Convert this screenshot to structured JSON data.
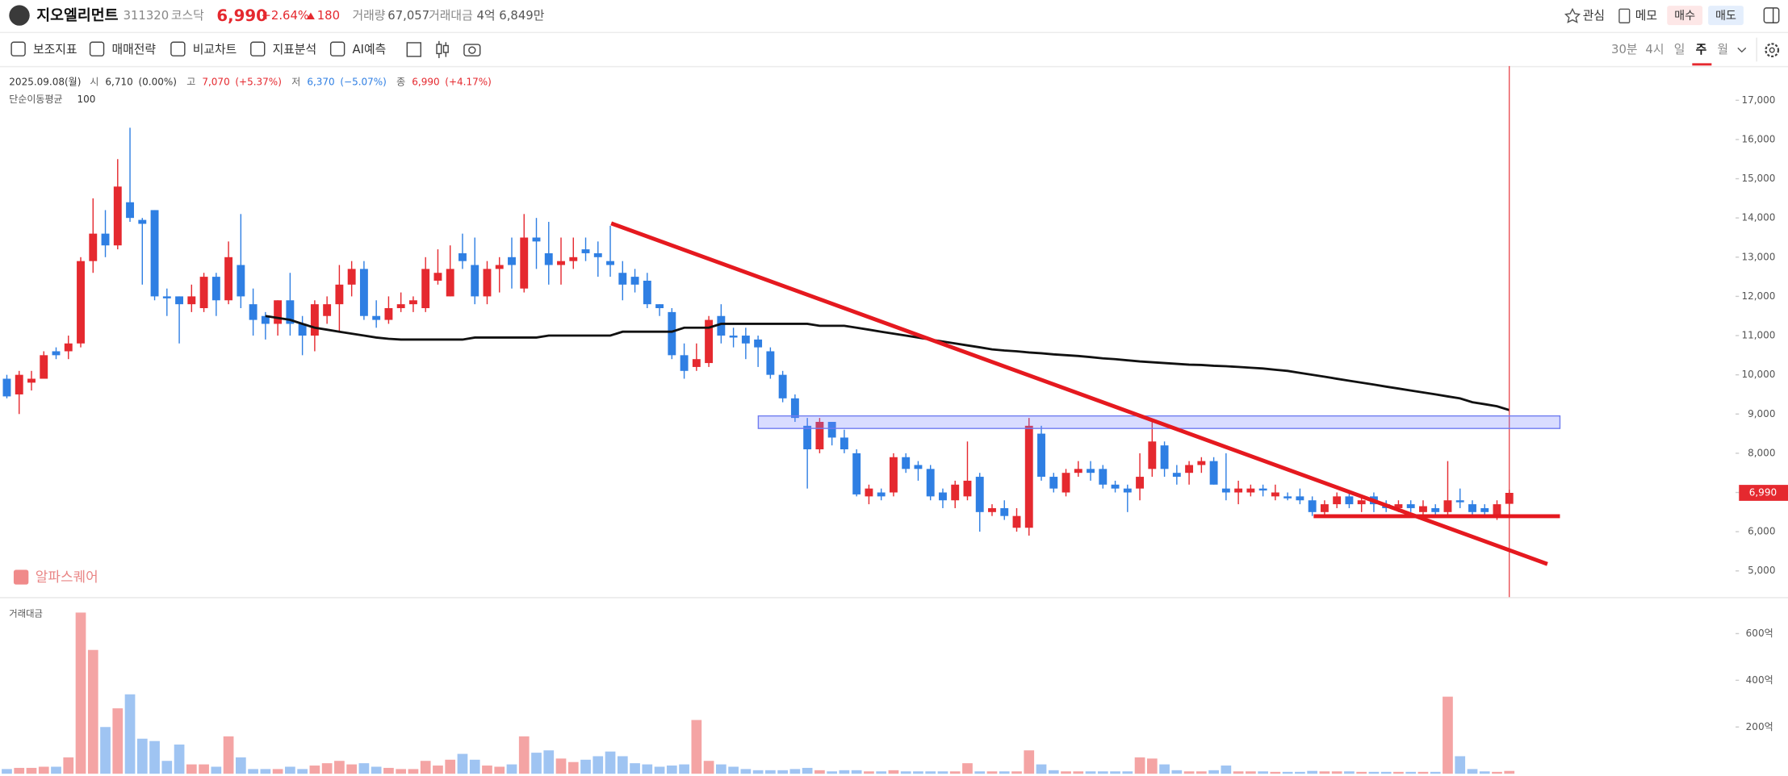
{
  "header": {
    "name": "지오엘리먼트",
    "code": "311320",
    "market": "코스닥",
    "price": "6,990",
    "change_pct": "+2.64%",
    "change": "180",
    "volume_label": "거래량",
    "volume": "67,057",
    "amount_label": "거래대금",
    "amount": "4억 6,849만",
    "actions": [
      "관심",
      "메모"
    ],
    "buy": "매수",
    "sell": "매도"
  },
  "toolbar": {
    "tools": [
      "보조지표",
      "매매전략",
      "비교차트",
      "지표분석",
      "AI예측"
    ],
    "periods": [
      "30분",
      "4시",
      "일",
      "주",
      "월"
    ],
    "selected_period": 3
  },
  "info": {
    "date": "2025.09.08(월)",
    "items": [
      {
        "label": "시",
        "value": "6,710",
        "change": "(0.00%)"
      },
      {
        "label": "고",
        "value": "7,070",
        "change": "(+5.37%)"
      },
      {
        "label": "저",
        "value": "6,370",
        "change": "(−5.07%)"
      },
      {
        "label": "종",
        "value": "6,990",
        "change": "(+4.17%)"
      }
    ]
  },
  "watermark": "알파스퀘어",
  "chart_data": [
    {
      "type": "candlestick",
      "up_color": "#e5292f",
      "down_color": "#2f7fe3",
      "ylim": [
        4332,
        17872
      ],
      "yticks": [
        {
          "value": 5000,
          "label": "5,000"
        },
        {
          "value": 6000,
          "label": "6,000"
        },
        {
          "value": 7000,
          "label": "7,000"
        },
        {
          "value": 8000,
          "label": "8,000"
        },
        {
          "value": 9000,
          "label": "9,000"
        },
        {
          "value": 10000,
          "label": "10,000"
        },
        {
          "value": 11000,
          "label": "11,000"
        },
        {
          "value": 12000,
          "label": "12,000"
        },
        {
          "value": 13000,
          "label": "13,000"
        },
        {
          "value": 14000,
          "label": "14,000"
        },
        {
          "value": 15000,
          "label": "15,000"
        },
        {
          "value": 16000,
          "label": "16,000"
        },
        {
          "value": 17000,
          "label": "17,000"
        }
      ],
      "open": [
        9900,
        9500,
        9800,
        9900,
        10600,
        10600,
        10800,
        12900,
        13600,
        13300,
        14400,
        13950,
        14200,
        12000,
        12000,
        11800,
        11700,
        12500,
        11900,
        12800,
        11800,
        11500,
        11300,
        11900,
        11300,
        11000,
        11500,
        11800,
        12300,
        12700,
        11500,
        11400,
        11700,
        11800,
        11700,
        12400,
        12000,
        13100,
        12800,
        12000,
        12700,
        13000,
        12200,
        13500,
        13100,
        12800,
        12900,
        13200,
        13100,
        12900,
        12600,
        12500,
        12400,
        11800,
        11600,
        10500,
        10200,
        10300,
        11500,
        11000,
        11000,
        10900,
        10600,
        10000,
        9400,
        8700,
        8100,
        8800,
        8400,
        8000,
        6900,
        7000,
        7000,
        7900,
        7700,
        7600,
        7000,
        6800,
        6900,
        7400,
        6500,
        6600,
        6100,
        6100,
        8500,
        7400,
        7000,
        7500,
        7600,
        7600,
        7200,
        7100,
        7100,
        7600,
        8200,
        7500,
        7500,
        7700,
        7800,
        7100,
        7000,
        7000,
        7100,
        6900,
        6900,
        6900,
        6800,
        6500,
        6700,
        6900,
        6700,
        6900,
        6700,
        6600,
        6700,
        6500,
        6600,
        6500,
        6800,
        6700,
        6600,
        6400,
        6710
      ],
      "high": [
        10000,
        10100,
        10100,
        10600,
        10700,
        11000,
        13000,
        14500,
        14200,
        15500,
        16300,
        14000,
        14200,
        12200,
        12000,
        12300,
        12600,
        12600,
        13400,
        14100,
        12200,
        11600,
        11900,
        12600,
        11500,
        11900,
        12000,
        12800,
        12900,
        12900,
        11900,
        12000,
        12100,
        12000,
        13000,
        13200,
        13300,
        13600,
        13500,
        12900,
        13000,
        13500,
        14100,
        14000,
        13900,
        13500,
        13500,
        13500,
        13400,
        13800,
        12900,
        12700,
        12600,
        11800,
        11700,
        10800,
        10800,
        11500,
        11800,
        11200,
        11200,
        11000,
        10700,
        10100,
        9500,
        8900,
        8900,
        8800,
        8600,
        8100,
        7200,
        7100,
        8000,
        8000,
        7800,
        7700,
        7100,
        7300,
        8300,
        7500,
        6700,
        6800,
        6600,
        8900,
        8700,
        7500,
        7600,
        7800,
        7800,
        7700,
        7300,
        7200,
        8000,
        8800,
        8300,
        7700,
        7800,
        7900,
        7900,
        8000,
        7300,
        7200,
        7200,
        7200,
        7000,
        7100,
        6900,
        6800,
        7000,
        7000,
        6900,
        7000,
        6800,
        6800,
        6800,
        6800,
        6700,
        7800,
        7100,
        6800,
        6700,
        6800,
        7070
      ],
      "low": [
        9400,
        9000,
        9600,
        9900,
        10400,
        10400,
        10700,
        12600,
        13000,
        13200,
        13900,
        12300,
        11900,
        11500,
        10800,
        11600,
        11600,
        11500,
        11800,
        11700,
        11000,
        10900,
        11000,
        11000,
        10500,
        10600,
        11300,
        11100,
        12000,
        11400,
        11200,
        11300,
        11600,
        11600,
        11600,
        12300,
        12000,
        12700,
        11800,
        11800,
        12100,
        12200,
        12100,
        12700,
        12300,
        12300,
        12700,
        12900,
        12500,
        12500,
        11900,
        12100,
        11700,
        11500,
        10400,
        9900,
        10100,
        10200,
        10800,
        10700,
        10400,
        10200,
        9900,
        9300,
        8800,
        7100,
        8000,
        8200,
        8000,
        6900,
        6700,
        6800,
        6900,
        7500,
        7300,
        6800,
        6600,
        6600,
        6800,
        6000,
        6400,
        6300,
        6000,
        5900,
        7300,
        7000,
        6900,
        7400,
        7300,
        7100,
        7000,
        6500,
        6800,
        7400,
        7400,
        7200,
        7200,
        7500,
        7200,
        6800,
        6700,
        6900,
        6900,
        6800,
        6800,
        6700,
        6400,
        6400,
        6600,
        6600,
        6500,
        6500,
        6500,
        6500,
        6500,
        6400,
        6400,
        6400,
        6600,
        6400,
        6400,
        6300,
        6370
      ],
      "close": [
        9450,
        10000,
        9900,
        10500,
        10500,
        10800,
        12900,
        13600,
        13300,
        14800,
        14000,
        13850,
        12000,
        11950,
        11800,
        12000,
        12500,
        11900,
        13000,
        12000,
        11400,
        11300,
        11900,
        11300,
        11000,
        11800,
        11800,
        12300,
        12700,
        11500,
        11400,
        11700,
        11800,
        11900,
        12700,
        12600,
        12700,
        12900,
        12000,
        12700,
        12800,
        12800,
        13500,
        13400,
        12800,
        12900,
        13000,
        13100,
        13000,
        12800,
        12300,
        12300,
        11800,
        11700,
        10500,
        10100,
        10400,
        11400,
        11000,
        10950,
        10800,
        10700,
        10000,
        9400,
        8900,
        8100,
        8800,
        8400,
        8100,
        6950,
        7100,
        6900,
        7900,
        7600,
        7600,
        6900,
        6800,
        7200,
        7300,
        6500,
        6600,
        6400,
        6400,
        8700,
        7400,
        7100,
        7500,
        7600,
        7500,
        7200,
        7100,
        7000,
        7400,
        8300,
        7600,
        7400,
        7700,
        7800,
        7200,
        7000,
        7100,
        7100,
        7050,
        7000,
        6850,
        6800,
        6500,
        6700,
        6900,
        6700,
        6800,
        6700,
        6600,
        6700,
        6600,
        6650,
        6500,
        6800,
        6750,
        6500,
        6500,
        6700,
        6990
      ],
      "series": [
        {
          "name": "단순이동평균",
          "period": 100,
          "color": "#111111",
          "values": [
            null,
            null,
            null,
            null,
            null,
            null,
            null,
            null,
            null,
            null,
            null,
            null,
            null,
            null,
            null,
            null,
            null,
            null,
            null,
            null,
            null,
            11500,
            11450,
            11400,
            11300,
            11200,
            11150,
            11100,
            11050,
            11000,
            10950,
            10920,
            10900,
            10900,
            10900,
            10900,
            10900,
            10900,
            10950,
            10950,
            10950,
            10950,
            10950,
            10950,
            11000,
            11000,
            11000,
            11000,
            11000,
            11000,
            11100,
            11100,
            11100,
            11100,
            11100,
            11200,
            11200,
            11200,
            11300,
            11300,
            11300,
            11300,
            11300,
            11300,
            11300,
            11300,
            11250,
            11250,
            11250,
            11200,
            11150,
            11100,
            11050,
            11000,
            10950,
            10900,
            10850,
            10800,
            10750,
            10700,
            10650,
            10620,
            10600,
            10570,
            10550,
            10520,
            10500,
            10480,
            10450,
            10420,
            10400,
            10370,
            10340,
            10320,
            10300,
            10280,
            10260,
            10250,
            10230,
            10220,
            10200,
            10180,
            10160,
            10130,
            10100,
            10050,
            10000,
            9950,
            9900,
            9850,
            9800,
            9750,
            9700,
            9650,
            9600,
            9550,
            9500,
            9450,
            9400,
            9300,
            9250,
            9200,
            9100
          ]
        }
      ]
    },
    {
      "type": "bar",
      "title": "거래대금",
      "up_color": "#f4a4a4",
      "down_color": "#9fc4f2",
      "ylim": [
        0,
        727
      ],
      "yticks": [
        {
          "value": 200,
          "label": "200억"
        },
        {
          "value": 400,
          "label": "400억"
        },
        {
          "value": 600,
          "label": "600억"
        }
      ],
      "values": [
        20,
        25,
        25,
        30,
        30,
        70,
        690,
        530,
        200,
        280,
        340,
        150,
        140,
        55,
        125,
        40,
        40,
        30,
        160,
        70,
        20,
        20,
        20,
        30,
        20,
        35,
        45,
        55,
        40,
        45,
        30,
        25,
        20,
        20,
        55,
        35,
        60,
        85,
        60,
        35,
        30,
        40,
        160,
        90,
        100,
        65,
        50,
        60,
        75,
        95,
        75,
        45,
        40,
        30,
        35,
        40,
        230,
        55,
        40,
        30,
        20,
        15,
        15,
        15,
        20,
        25,
        15,
        10,
        15,
        15,
        10,
        10,
        15,
        10,
        10,
        10,
        10,
        10,
        45,
        10,
        10,
        10,
        10,
        100,
        40,
        15,
        10,
        10,
        10,
        10,
        10,
        10,
        70,
        65,
        40,
        15,
        10,
        10,
        15,
        35,
        10,
        10,
        10,
        8,
        8,
        8,
        12,
        10,
        10,
        10,
        8,
        8,
        8,
        8,
        8,
        8,
        8,
        330,
        75,
        20,
        10,
        8,
        12
      ]
    }
  ]
}
